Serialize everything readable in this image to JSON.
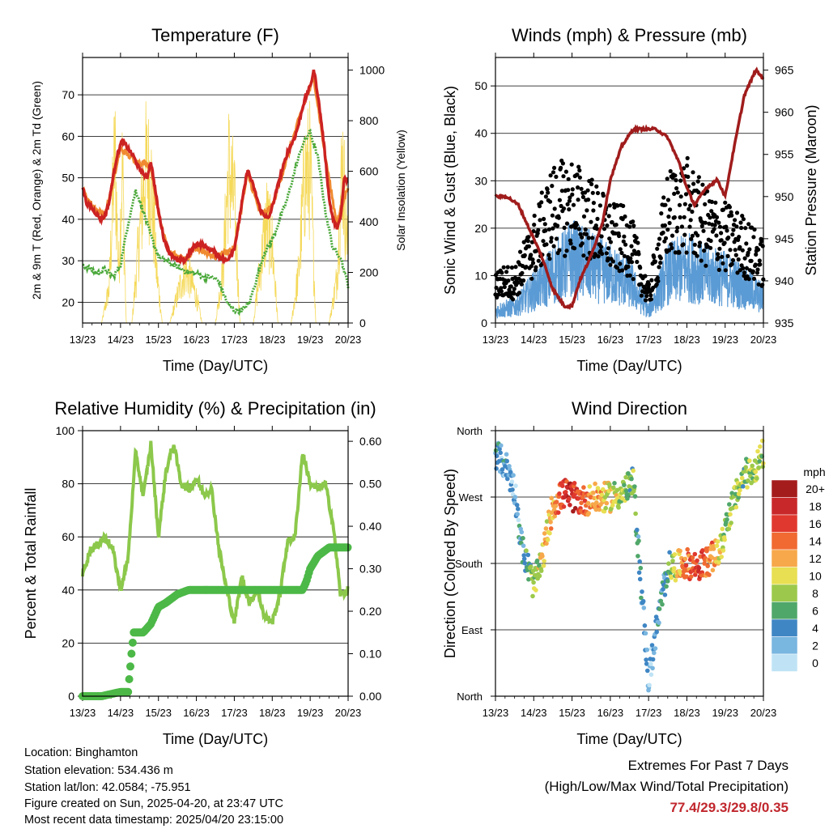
{
  "panels": {
    "temperature": {
      "title": "Temperature (F)",
      "ylabel_left": "2m & 9m T (Red, Orange) & 2m Td (Green)",
      "ylabel_right": "Solar Insolation (Yellow)",
      "xlabel": "Time (Day/UTC)"
    },
    "wind": {
      "title": "Winds (mph) & Pressure (mb)",
      "ylabel_left": "Sonic Wind & Gust (Blue, Black)",
      "ylabel_right": "Station Pressure (Maroon)",
      "xlabel": "Time (Day/UTC)"
    },
    "humidity": {
      "title": "Relative Humidity (%) & Precipitation (in)",
      "ylabel_left": "Percent & Total Rainfall",
      "xlabel": "Time (Day/UTC)"
    },
    "direction": {
      "title": "Wind Direction",
      "ylabel_left": "Direction (Colored By Speed)",
      "xlabel": "Time (Day/UTC)",
      "legend_title": "mph"
    }
  },
  "footer": {
    "location": "Location: Binghamton",
    "elevation": "Station elevation: 534.436 m",
    "latlon": "Station lat/lon: 42.0584; -75.951",
    "created": "Figure created on Sun, 2025-04-20, at 23:47 UTC",
    "recent": "Most recent data timestamp: 2025/04/20 23:15:00"
  },
  "extremes": {
    "heading": "Extremes For Past 7 Days",
    "subheading": "(High/Low/Max Wind/Total Precipitation)",
    "values": "77.4/29.3/29.8/0.35"
  },
  "colors": {
    "temp_2m": "#cc2222",
    "temp_9m": "#f08a30",
    "dewpoint": "#4aa83a",
    "solar": "#f5d95a",
    "wind": "#5b9bd5",
    "gust": "#000000",
    "pressure": "#a01c1c",
    "rh": "#8cc84b",
    "precip": "#4cb847"
  },
  "chart_data": [
    {
      "type": "line",
      "title": "Temperature (F)",
      "xlabel": "Time (Day/UTC)",
      "ylabel": "2m & 9m T (Red, Orange) & 2m Td (Green)",
      "ylabel_right": "Solar Insolation (Yellow)",
      "x_ticks": [
        "13/23",
        "14/23",
        "15/23",
        "16/23",
        "17/23",
        "18/23",
        "19/23",
        "20/23"
      ],
      "ylim": [
        15,
        79
      ],
      "y_ticks": [
        20,
        30,
        40,
        50,
        60,
        70
      ],
      "ylim_right": [
        0,
        1050
      ],
      "y_ticks_right": [
        0,
        200,
        400,
        600,
        800,
        1000
      ],
      "grid": true,
      "series": [
        {
          "name": "2m T",
          "color": "#cc2222",
          "x": [
            0,
            0.1,
            0.2,
            0.4,
            0.5,
            0.6,
            0.7,
            0.8,
            0.9,
            1.0,
            1.05,
            1.2,
            1.35,
            1.5,
            1.7,
            1.8,
            1.9,
            2.0,
            2.15,
            2.3,
            2.5,
            2.7,
            2.9,
            3.0,
            3.1,
            3.3,
            3.5,
            3.6,
            3.8,
            4.0,
            4.1,
            4.2,
            4.35,
            4.5,
            4.7,
            4.9,
            5.0,
            5.2,
            5.4,
            5.6,
            5.7,
            5.8,
            5.9,
            6.0,
            6.1,
            6.2,
            6.3,
            6.4,
            6.5,
            6.6,
            6.7,
            6.8,
            6.9,
            7.0
          ],
          "y": [
            48,
            44,
            43,
            41,
            40,
            41,
            44,
            50,
            55,
            58,
            59,
            57,
            55,
            52,
            50,
            54,
            48,
            42,
            35,
            32,
            30,
            30,
            33,
            34,
            34,
            33,
            32,
            31,
            30,
            33,
            38,
            44,
            52,
            48,
            42,
            40,
            43,
            50,
            56,
            60,
            63,
            67,
            70,
            72,
            76,
            70,
            63,
            55,
            45,
            40,
            38,
            40,
            50,
            49
          ]
        },
        {
          "name": "9m T",
          "color": "#f08a30",
          "x": [
            0,
            0.2,
            0.4,
            0.6,
            0.8,
            1.0,
            1.4,
            1.8,
            2.0,
            2.3,
            2.7,
            3.0,
            3.5,
            4.0,
            4.35,
            4.7,
            5.0,
            5.4,
            5.8,
            6.1,
            6.4,
            6.7,
            7.0
          ],
          "y": [
            47,
            44,
            42,
            41,
            49,
            57,
            54,
            53,
            41,
            32,
            30,
            33,
            31,
            33,
            51,
            41,
            43,
            55,
            67,
            74,
            55,
            39,
            48
          ]
        },
        {
          "name": "2m Td",
          "color": "#4aa83a",
          "x": [
            0,
            0.2,
            0.4,
            0.6,
            0.8,
            1.0,
            1.2,
            1.4,
            1.6,
            1.8,
            2.0,
            2.2,
            2.4,
            2.6,
            2.8,
            3.0,
            3.2,
            3.4,
            3.6,
            3.8,
            4.0,
            4.2,
            4.4,
            4.6,
            4.8,
            5.0,
            5.2,
            5.4,
            5.6,
            5.8,
            6.0,
            6.2,
            6.4,
            6.6,
            6.8,
            7.0
          ],
          "y": [
            29,
            28,
            27,
            28,
            26,
            29,
            39,
            47,
            42,
            36,
            31,
            30,
            29,
            28,
            27,
            27,
            26,
            26,
            25,
            20,
            18,
            18,
            20,
            26,
            32,
            35,
            40,
            45,
            52,
            58,
            61,
            55,
            42,
            33,
            31,
            24
          ]
        },
        {
          "name": "Solar Insolation",
          "color": "#f5d95a",
          "axis": "right",
          "x": [
            0.5,
            0.7,
            0.85,
            0.95,
            1.05,
            1.15,
            1.3,
            1.5,
            1.65,
            1.8,
            1.95,
            2.1,
            2.3,
            2.55,
            2.7,
            2.85,
            3.0,
            3.15,
            3.5,
            3.7,
            3.85,
            4.0,
            4.15,
            4.5,
            4.7,
            4.85,
            5.0,
            5.15,
            5.5,
            5.7,
            5.85,
            6.0,
            6.15,
            6.5,
            6.7,
            6.85,
            7.0
          ],
          "y": [
            0,
            200,
            1000,
            300,
            900,
            0,
            0,
            500,
            900,
            850,
            300,
            0,
            0,
            200,
            300,
            250,
            150,
            0,
            0,
            300,
            900,
            700,
            0,
            0,
            350,
            600,
            450,
            0,
            0,
            300,
            850,
            900,
            0,
            0,
            250,
            950,
            400
          ]
        }
      ]
    },
    {
      "type": "scatter",
      "title": "Winds (mph) & Pressure (mb)",
      "xlabel": "Time (Day/UTC)",
      "ylabel": "Sonic Wind & Gust (Blue, Black)",
      "ylabel_right": "Station Pressure (Maroon)",
      "x_ticks": [
        "13/23",
        "14/23",
        "15/23",
        "16/23",
        "17/23",
        "18/23",
        "19/23",
        "20/23"
      ],
      "ylim": [
        0,
        56
      ],
      "y_ticks": [
        0,
        10,
        20,
        30,
        40,
        50
      ],
      "ylim_right": [
        935,
        966.5
      ],
      "y_ticks_right": [
        935,
        940,
        945,
        950,
        955,
        960,
        965
      ],
      "grid": true,
      "series": [
        {
          "name": "Sonic Wind",
          "color": "#5b9bd5",
          "x": [
            0,
            0.5,
            1.0,
            1.5,
            2.0,
            2.5,
            3.0,
            3.5,
            4.0,
            4.5,
            5.0,
            5.5,
            6.0,
            6.5,
            7.0
          ],
          "y": [
            3,
            4,
            8,
            12,
            16,
            14,
            12,
            10,
            3,
            12,
            14,
            12,
            11,
            9,
            6
          ]
        },
        {
          "name": "Gust",
          "color": "#000000",
          "x": [
            0,
            0.5,
            1.0,
            1.5,
            2.0,
            2.5,
            3.0,
            3.5,
            4.0,
            4.5,
            5.0,
            5.5,
            6.0,
            6.5,
            7.0
          ],
          "y": [
            9,
            9,
            17,
            25,
            26,
            23,
            19,
            18,
            6,
            24,
            26,
            21,
            19,
            17,
            13
          ]
        },
        {
          "name": "Station Pressure",
          "color": "#a01c1c",
          "axis": "right",
          "x": [
            0,
            0.3,
            0.6,
            0.9,
            1.2,
            1.5,
            1.8,
            2.0,
            2.2,
            2.5,
            2.8,
            3.0,
            3.3,
            3.6,
            3.9,
            4.2,
            4.5,
            4.8,
            5.0,
            5.2,
            5.5,
            5.8,
            6.0,
            6.2,
            6.5,
            6.8,
            7.0
          ],
          "y": [
            950,
            950,
            949,
            946,
            943,
            939,
            937,
            937,
            940,
            943,
            947,
            952,
            956,
            958,
            958,
            958,
            957,
            954,
            951,
            949,
            951,
            952,
            950,
            955,
            962,
            965,
            964
          ]
        }
      ]
    },
    {
      "type": "line",
      "title": "Relative Humidity (%) & Precipitation (in)",
      "xlabel": "Time (Day/UTC)",
      "ylabel": "Percent & Total Rainfall",
      "x_ticks": [
        "13/23",
        "14/23",
        "15/23",
        "16/23",
        "17/23",
        "18/23",
        "19/23",
        "20/23"
      ],
      "ylim": [
        0,
        100
      ],
      "y_ticks": [
        0,
        20,
        40,
        60,
        80,
        100
      ],
      "ylim_right": [
        0,
        0.625
      ],
      "y_ticks_right": [
        0.0,
        0.1,
        0.2,
        0.3,
        0.4,
        0.5,
        0.6
      ],
      "grid": true,
      "series": [
        {
          "name": "Relative Humidity",
          "color": "#8cc84b",
          "x": [
            0,
            0.2,
            0.4,
            0.6,
            0.8,
            1.0,
            1.2,
            1.4,
            1.6,
            1.8,
            2.0,
            2.2,
            2.4,
            2.6,
            2.8,
            3.0,
            3.2,
            3.4,
            3.6,
            3.8,
            4.0,
            4.2,
            4.4,
            4.6,
            4.8,
            5.0,
            5.2,
            5.4,
            5.6,
            5.8,
            6.0,
            6.2,
            6.4,
            6.6,
            6.8,
            7.0
          ],
          "y": [
            46,
            55,
            57,
            60,
            55,
            40,
            52,
            92,
            75,
            95,
            60,
            85,
            95,
            80,
            78,
            82,
            76,
            78,
            55,
            40,
            28,
            45,
            35,
            40,
            30,
            28,
            38,
            58,
            60,
            92,
            80,
            78,
            80,
            65,
            38,
            40
          ]
        },
        {
          "name": "Total Precipitation",
          "color": "#4cb847",
          "axis": "right",
          "x": [
            0,
            0.5,
            1.0,
            1.2,
            1.3,
            1.35,
            1.6,
            1.8,
            2.0,
            2.2,
            2.5,
            2.8,
            3.0,
            3.5,
            4.0,
            4.5,
            5.0,
            5.5,
            5.8,
            5.9,
            6.0,
            6.2,
            6.5,
            7.0
          ],
          "y": [
            0.0,
            0.0,
            0.01,
            0.01,
            0.11,
            0.15,
            0.15,
            0.17,
            0.21,
            0.22,
            0.24,
            0.25,
            0.25,
            0.25,
            0.25,
            0.25,
            0.25,
            0.25,
            0.25,
            0.27,
            0.3,
            0.33,
            0.35,
            0.35
          ]
        }
      ]
    },
    {
      "type": "scatter",
      "title": "Wind Direction",
      "xlabel": "Time (Day/UTC)",
      "ylabel": "Direction (Colored By Speed)",
      "x_ticks": [
        "13/23",
        "14/23",
        "15/23",
        "16/23",
        "17/23",
        "18/23",
        "19/23",
        "20/23"
      ],
      "y_ticks": [
        "North",
        "East",
        "South",
        "West",
        "North"
      ],
      "ylim": [
        0,
        360
      ],
      "grid": true,
      "legend": {
        "title": "mph",
        "labels": [
          "20+",
          "18",
          "16",
          "14",
          "12",
          "10",
          "8",
          "6",
          "4",
          "2",
          "0"
        ],
        "colors": [
          "#a51c1c",
          "#c9282a",
          "#e0382e",
          "#f06a32",
          "#f7a84a",
          "#e8df52",
          "#9cc94b",
          "#50a76a",
          "#3f86c4",
          "#79b6e0",
          "#bfe3f5"
        ]
      },
      "series": [
        {
          "name": "Direction",
          "x": [
            0,
            0.3,
            0.5,
            0.7,
            1.0,
            1.2,
            1.5,
            1.8,
            2.0,
            2.3,
            2.6,
            3.0,
            3.3,
            3.6,
            4.0,
            4.2,
            4.5,
            5.0,
            5.3,
            5.6,
            5.9,
            6.0,
            6.2,
            6.5,
            6.8,
            7.0
          ],
          "y": [
            330,
            310,
            280,
            200,
            150,
            180,
            260,
            275,
            270,
            265,
            268,
            270,
            275,
            290,
            20,
            90,
            175,
            180,
            175,
            185,
            200,
            230,
            260,
            300,
            310,
            330
          ],
          "speed": [
            3,
            3,
            2,
            4,
            8,
            10,
            12,
            16,
            18,
            14,
            12,
            10,
            8,
            7,
            2,
            3,
            6,
            14,
            16,
            14,
            10,
            8,
            8,
            7,
            9,
            8
          ]
        }
      ]
    }
  ]
}
